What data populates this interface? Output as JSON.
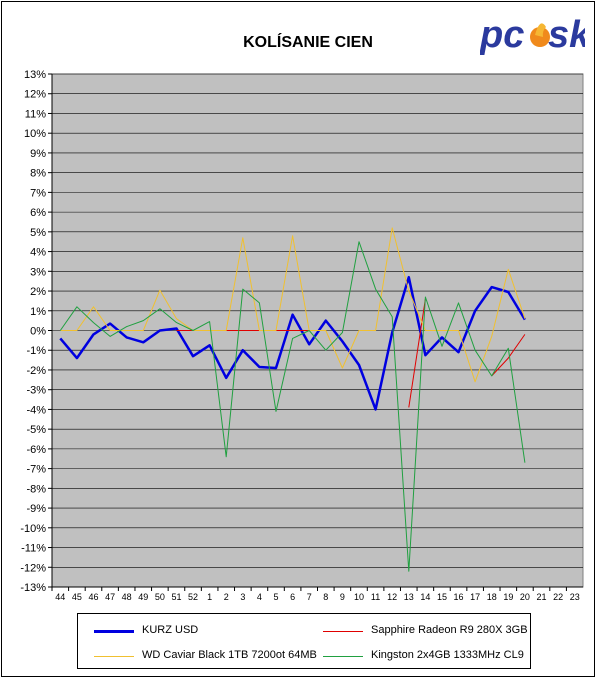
{
  "logo": {
    "icon": "pcsk-logo",
    "text": "pc sk",
    "colors": {
      "letters": "#2b3a9e",
      "flame": "#f08a1c"
    }
  },
  "chart_data": {
    "type": "line",
    "title": "KOLÍSANIE CIEN",
    "xlabel": "",
    "ylabel": "",
    "ylim": [
      -13,
      13
    ],
    "y_tick_step": 1,
    "y_tick_format": "percent",
    "y_ticks": [
      "13%",
      "12%",
      "11%",
      "10%",
      "9%",
      "8%",
      "7%",
      "6%",
      "5%",
      "4%",
      "3%",
      "2%",
      "1%",
      "0%",
      "-1%",
      "-2%",
      "-3%",
      "-4%",
      "-5%",
      "-6%",
      "-7%",
      "-8%",
      "-9%",
      "-10%",
      "-11%",
      "-12%",
      "-13%"
    ],
    "grid": true,
    "plot_background": "#c0c0c0",
    "legend_position": "bottom",
    "categories": [
      "44",
      "45",
      "46",
      "47",
      "48",
      "49",
      "50",
      "51",
      "52",
      "1",
      "2",
      "3",
      "4",
      "5",
      "6",
      "7",
      "8",
      "9",
      "10",
      "11",
      "12",
      "13",
      "14",
      "15",
      "16",
      "17",
      "18",
      "19",
      "20",
      "21",
      "22",
      "23"
    ],
    "series": [
      {
        "name": "KURZ USD",
        "color": "#0000e0",
        "width": 2.5,
        "values": [
          -0.4,
          -1.4,
          -0.2,
          0.35,
          -0.35,
          -0.6,
          0.0,
          0.1,
          -1.3,
          -0.75,
          -2.4,
          -1.0,
          -1.85,
          -1.9,
          0.8,
          -0.7,
          0.5,
          -0.55,
          -1.75,
          -4.0,
          -0.1,
          2.7,
          -1.25,
          -0.35,
          -1.1,
          1.0,
          2.2,
          1.95,
          0.55,
          null,
          null,
          null
        ]
      },
      {
        "name": "Sapphire Radeon R9 280X 3GB",
        "color": "#e00000",
        "width": 1,
        "values": [
          null,
          null,
          null,
          null,
          null,
          null,
          null,
          0.0,
          0.0,
          null,
          0.0,
          0.0,
          0.0,
          0.0,
          0.0,
          0.0,
          null,
          null,
          null,
          null,
          null,
          -3.9,
          1.6,
          null,
          null,
          null,
          -2.3,
          -1.4,
          -0.2,
          null,
          null,
          null
        ]
      },
      {
        "name": "WD Caviar Black 1TB 7200ot 64MB",
        "color": "#f0c030",
        "width": 1,
        "values": [
          0.0,
          0.0,
          1.2,
          0.0,
          0.0,
          0.0,
          2.05,
          0.6,
          0.0,
          0.0,
          0.0,
          4.7,
          0.0,
          0.0,
          4.8,
          0.0,
          0.0,
          -1.9,
          0.0,
          0.0,
          5.2,
          2.0,
          0.0,
          0.0,
          0.0,
          -2.6,
          -0.3,
          3.1,
          0.6,
          null,
          null,
          null
        ]
      },
      {
        "name": "Kingston 2x4GB 1333MHz CL9",
        "color": "#20a040",
        "width": 1,
        "values": [
          0.0,
          1.2,
          0.4,
          -0.3,
          0.2,
          0.5,
          1.1,
          0.4,
          0.0,
          0.45,
          -6.4,
          2.1,
          1.4,
          -4.1,
          -0.4,
          0.0,
          -1.0,
          -0.1,
          4.5,
          2.1,
          0.7,
          -12.2,
          1.7,
          -0.8,
          1.4,
          -1.0,
          -2.3,
          -0.9,
          -6.7,
          null,
          null,
          null
        ]
      }
    ]
  }
}
